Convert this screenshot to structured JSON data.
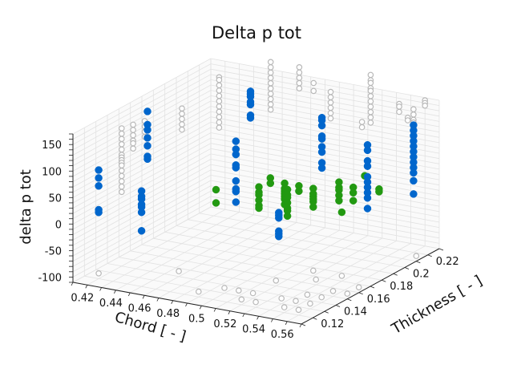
{
  "chart_data": {
    "type": "scatter",
    "projection": "3d",
    "title": "Delta p tot",
    "xlabel": "Chord [ - ]",
    "ylabel": "Thickness [ - ]",
    "zlabel": "delta p tot",
    "xlim": [
      0.41,
      0.57
    ],
    "ylim": [
      0.11,
      0.23
    ],
    "zlim": [
      -110,
      170
    ],
    "xticks": [
      "0.42",
      "0.44",
      "0.46",
      "0.48",
      "0.5",
      "0.52",
      "0.54",
      "0.56"
    ],
    "yticks": [
      "0.12",
      "0.14",
      "0.16",
      "0.18",
      "0.2",
      "0.22"
    ],
    "zticks": [
      "150",
      "100",
      "50",
      "0",
      "-50",
      "-100"
    ],
    "grid": true,
    "colors": {
      "blue": "#0066cc",
      "green": "#229911",
      "gray_open": "#b8b8b8",
      "grid": "#e2e2e2",
      "axis": "#222222"
    },
    "series": [
      {
        "marker": "filled-blue",
        "points": [
          [
            0.42,
            0.12,
            95
          ],
          [
            0.42,
            0.12,
            80
          ],
          [
            0.42,
            0.12,
            65
          ],
          [
            0.42,
            0.12,
            20
          ],
          [
            0.42,
            0.12,
            15
          ],
          [
            0.43,
            0.15,
            175
          ],
          [
            0.43,
            0.15,
            150
          ],
          [
            0.43,
            0.15,
            140
          ],
          [
            0.43,
            0.15,
            125
          ],
          [
            0.43,
            0.15,
            110
          ],
          [
            0.43,
            0.15,
            90
          ],
          [
            0.43,
            0.15,
            85
          ],
          [
            0.45,
            0.12,
            70
          ],
          [
            0.45,
            0.12,
            60
          ],
          [
            0.45,
            0.12,
            55
          ],
          [
            0.45,
            0.12,
            45
          ],
          [
            0.45,
            0.12,
            40
          ],
          [
            0.45,
            0.12,
            30
          ],
          [
            0.45,
            0.12,
            -5
          ],
          [
            0.47,
            0.19,
            185
          ],
          [
            0.47,
            0.19,
            180
          ],
          [
            0.47,
            0.19,
            175
          ],
          [
            0.47,
            0.19,
            165
          ],
          [
            0.47,
            0.19,
            160
          ],
          [
            0.47,
            0.19,
            140
          ],
          [
            0.47,
            0.19,
            135
          ],
          [
            0.5,
            0.14,
            165
          ],
          [
            0.5,
            0.14,
            150
          ],
          [
            0.5,
            0.14,
            140
          ],
          [
            0.5,
            0.14,
            120
          ],
          [
            0.5,
            0.14,
            115
          ],
          [
            0.5,
            0.14,
            90
          ],
          [
            0.5,
            0.14,
            75
          ],
          [
            0.5,
            0.14,
            70
          ],
          [
            0.5,
            0.14,
            50
          ],
          [
            0.52,
            0.19,
            160
          ],
          [
            0.52,
            0.19,
            155
          ],
          [
            0.52,
            0.19,
            145
          ],
          [
            0.52,
            0.19,
            125
          ],
          [
            0.52,
            0.19,
            120
          ],
          [
            0.52,
            0.19,
            105
          ],
          [
            0.52,
            0.19,
            95
          ],
          [
            0.52,
            0.19,
            75
          ],
          [
            0.52,
            0.19,
            65
          ],
          [
            0.53,
            0.14,
            45
          ],
          [
            0.53,
            0.14,
            40
          ],
          [
            0.53,
            0.14,
            35
          ],
          [
            0.53,
            0.14,
            10
          ],
          [
            0.53,
            0.14,
            5
          ],
          [
            0.53,
            0.14,
            0
          ],
          [
            0.56,
            0.18,
            140
          ],
          [
            0.56,
            0.18,
            130
          ],
          [
            0.56,
            0.18,
            110
          ],
          [
            0.56,
            0.18,
            100
          ],
          [
            0.56,
            0.18,
            80
          ],
          [
            0.56,
            0.18,
            70
          ],
          [
            0.56,
            0.18,
            60
          ],
          [
            0.56,
            0.18,
            50
          ],
          [
            0.56,
            0.18,
            40
          ],
          [
            0.56,
            0.18,
            20
          ],
          [
            0.56,
            0.22,
            130
          ],
          [
            0.56,
            0.22,
            120
          ],
          [
            0.56,
            0.22,
            110
          ],
          [
            0.56,
            0.22,
            100
          ],
          [
            0.56,
            0.22,
            90
          ],
          [
            0.56,
            0.22,
            80
          ],
          [
            0.56,
            0.22,
            70
          ],
          [
            0.56,
            0.22,
            60
          ],
          [
            0.56,
            0.22,
            50
          ],
          [
            0.56,
            0.22,
            40
          ],
          [
            0.56,
            0.22,
            25
          ],
          [
            0.56,
            0.22,
            0
          ]
        ]
      },
      {
        "marker": "filled-green",
        "points": [
          [
            0.47,
            0.16,
            35
          ],
          [
            0.47,
            0.16,
            10
          ],
          [
            0.5,
            0.16,
            55
          ],
          [
            0.5,
            0.16,
            45
          ],
          [
            0.5,
            0.16,
            40
          ],
          [
            0.5,
            0.16,
            30
          ],
          [
            0.5,
            0.16,
            20
          ],
          [
            0.5,
            0.16,
            15
          ],
          [
            0.5,
            0.17,
            60
          ],
          [
            0.5,
            0.17,
            50
          ],
          [
            0.51,
            0.17,
            55
          ],
          [
            0.51,
            0.17,
            45
          ],
          [
            0.51,
            0.17,
            40
          ],
          [
            0.51,
            0.17,
            35
          ],
          [
            0.51,
            0.17,
            30
          ],
          [
            0.51,
            0.17,
            25
          ],
          [
            0.51,
            0.17,
            15
          ],
          [
            0.52,
            0.16,
            60
          ],
          [
            0.52,
            0.16,
            50
          ],
          [
            0.52,
            0.16,
            45
          ],
          [
            0.52,
            0.16,
            35
          ],
          [
            0.52,
            0.16,
            25
          ],
          [
            0.52,
            0.16,
            20
          ],
          [
            0.52,
            0.16,
            10
          ],
          [
            0.52,
            0.17,
            55
          ],
          [
            0.52,
            0.17,
            45
          ],
          [
            0.53,
            0.17,
            55
          ],
          [
            0.53,
            0.17,
            45
          ],
          [
            0.53,
            0.17,
            40
          ],
          [
            0.53,
            0.17,
            35
          ],
          [
            0.53,
            0.17,
            30
          ],
          [
            0.53,
            0.17,
            20
          ],
          [
            0.54,
            0.18,
            60
          ],
          [
            0.54,
            0.18,
            50
          ],
          [
            0.54,
            0.18,
            45
          ],
          [
            0.54,
            0.18,
            35
          ],
          [
            0.54,
            0.18,
            25
          ],
          [
            0.55,
            0.18,
            55
          ],
          [
            0.55,
            0.18,
            45
          ],
          [
            0.55,
            0.18,
            30
          ],
          [
            0.55,
            0.19,
            65
          ],
          [
            0.56,
            0.19,
            45
          ],
          [
            0.56,
            0.19,
            40
          ],
          [
            0.55,
            0.17,
            20
          ]
        ]
      },
      {
        "marker": "open-gray",
        "points": [
          [
            0.42,
            0.14,
            150
          ],
          [
            0.42,
            0.14,
            140
          ],
          [
            0.42,
            0.14,
            130
          ],
          [
            0.42,
            0.14,
            120
          ],
          [
            0.42,
            0.14,
            110
          ],
          [
            0.42,
            0.14,
            100
          ],
          [
            0.42,
            0.14,
            95
          ],
          [
            0.42,
            0.14,
            90
          ],
          [
            0.42,
            0.14,
            85
          ],
          [
            0.42,
            0.14,
            80
          ],
          [
            0.42,
            0.14,
            70
          ],
          [
            0.42,
            0.14,
            60
          ],
          [
            0.42,
            0.14,
            50
          ],
          [
            0.42,
            0.14,
            40
          ],
          [
            0.42,
            0.14,
            30
          ],
          [
            0.42,
            0.15,
            145
          ],
          [
            0.42,
            0.15,
            135
          ],
          [
            0.42,
            0.15,
            125
          ],
          [
            0.42,
            0.15,
            115
          ],
          [
            0.42,
            0.15,
            110
          ],
          [
            0.42,
            0.15,
            100
          ],
          [
            0.42,
            0.16,
            140
          ],
          [
            0.42,
            0.16,
            130
          ],
          [
            0.42,
            0.16,
            120
          ],
          [
            0.42,
            0.16,
            110
          ],
          [
            0.43,
            0.18,
            145
          ],
          [
            0.43,
            0.18,
            135
          ],
          [
            0.43,
            0.18,
            125
          ],
          [
            0.43,
            0.18,
            115
          ],
          [
            0.43,
            0.18,
            105
          ],
          [
            0.44,
            0.2,
            185
          ],
          [
            0.44,
            0.2,
            180
          ],
          [
            0.44,
            0.2,
            170
          ],
          [
            0.44,
            0.2,
            160
          ],
          [
            0.44,
            0.2,
            150
          ],
          [
            0.44,
            0.2,
            140
          ],
          [
            0.44,
            0.2,
            130
          ],
          [
            0.44,
            0.2,
            120
          ],
          [
            0.44,
            0.2,
            110
          ],
          [
            0.44,
            0.2,
            100
          ],
          [
            0.44,
            0.2,
            90
          ],
          [
            0.46,
            0.22,
            200
          ],
          [
            0.46,
            0.22,
            190
          ],
          [
            0.46,
            0.22,
            180
          ],
          [
            0.46,
            0.22,
            170
          ],
          [
            0.46,
            0.22,
            160
          ],
          [
            0.46,
            0.22,
            150
          ],
          [
            0.46,
            0.22,
            140
          ],
          [
            0.46,
            0.22,
            130
          ],
          [
            0.46,
            0.22,
            120
          ],
          [
            0.46,
            0.22,
            110
          ],
          [
            0.48,
            0.22,
            200
          ],
          [
            0.48,
            0.22,
            190
          ],
          [
            0.48,
            0.22,
            180
          ],
          [
            0.48,
            0.22,
            170
          ],
          [
            0.48,
            0.22,
            160
          ],
          [
            0.49,
            0.22,
            175
          ],
          [
            0.49,
            0.22,
            160
          ],
          [
            0.51,
            0.21,
            180
          ],
          [
            0.51,
            0.21,
            170
          ],
          [
            0.51,
            0.21,
            160
          ],
          [
            0.51,
            0.21,
            150
          ],
          [
            0.51,
            0.21,
            140
          ],
          [
            0.51,
            0.21,
            130
          ],
          [
            0.53,
            0.22,
            210
          ],
          [
            0.53,
            0.22,
            200
          ],
          [
            0.53,
            0.22,
            195
          ],
          [
            0.53,
            0.22,
            185
          ],
          [
            0.53,
            0.22,
            180
          ],
          [
            0.53,
            0.22,
            170
          ],
          [
            0.53,
            0.22,
            160
          ],
          [
            0.53,
            0.22,
            150
          ],
          [
            0.53,
            0.22,
            140
          ],
          [
            0.53,
            0.22,
            130
          ],
          [
            0.53,
            0.22,
            120
          ],
          [
            0.54,
            0.2,
            150
          ],
          [
            0.54,
            0.2,
            140
          ],
          [
            0.55,
            0.22,
            165
          ],
          [
            0.55,
            0.22,
            160
          ],
          [
            0.55,
            0.22,
            150
          ],
          [
            0.56,
            0.22,
            160
          ],
          [
            0.56,
            0.22,
            150
          ],
          [
            0.56,
            0.22,
            140
          ],
          [
            0.56,
            0.22,
            135
          ],
          [
            0.56,
            0.22,
            130
          ],
          [
            0.56,
            0.22,
            125
          ],
          [
            0.56,
            0.22,
            120
          ],
          [
            0.56,
            0.23,
            165
          ],
          [
            0.56,
            0.23,
            160
          ],
          [
            0.56,
            0.23,
            155
          ],
          [
            0.56,
            0.215,
            150
          ],
          [
            0.56,
            0.215,
            145
          ],
          [
            0.54,
            0.16,
            -100
          ],
          [
            0.52,
            0.15,
            -100
          ],
          [
            0.42,
            0.12,
            -100
          ],
          [
            0.46,
            0.14,
            -100
          ],
          [
            0.53,
            0.17,
            -100
          ],
          [
            0.55,
            0.17,
            -100
          ],
          [
            0.49,
            0.12,
            -100
          ],
          [
            0.5,
            0.13,
            -100
          ],
          [
            0.51,
            0.13,
            -100
          ],
          [
            0.52,
            0.13,
            -100
          ],
          [
            0.52,
            0.12,
            -100
          ],
          [
            0.53,
            0.12,
            -100
          ],
          [
            0.54,
            0.13,
            -100
          ],
          [
            0.55,
            0.13,
            -100
          ],
          [
            0.55,
            0.14,
            -100
          ],
          [
            0.55,
            0.12,
            -100
          ],
          [
            0.56,
            0.12,
            -100
          ],
          [
            0.56,
            0.13,
            -100
          ],
          [
            0.56,
            0.14,
            -100
          ],
          [
            0.57,
            0.15,
            -100
          ],
          [
            0.57,
            0.16,
            -100
          ],
          [
            0.56,
            0.15,
            -100
          ],
          [
            0.57,
            0.21,
            -100
          ]
        ]
      }
    ]
  }
}
